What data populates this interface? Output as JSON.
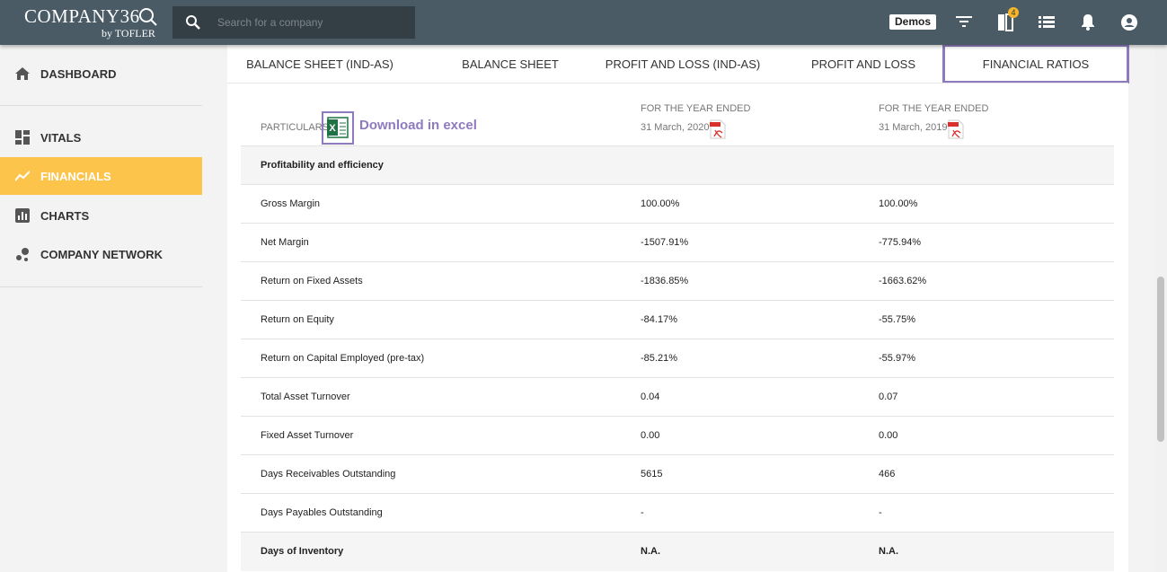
{
  "topbar": {
    "logo": "COMPANY36",
    "logo_sub": "by TOFLER",
    "search_placeholder": "Search for a company",
    "demos": "Demos",
    "badge": "4"
  },
  "sidebar": {
    "items": [
      "DASHBOARD",
      "VITALS",
      "FINANCIALS",
      "CHARTS",
      "COMPANY NETWORK"
    ]
  },
  "tabs": [
    "BALANCE SHEET (IND-AS)",
    "BALANCE SHEET",
    "PROFIT AND LOSS (IND-AS)",
    "PROFIT AND LOSS",
    "FINANCIAL RATIOS"
  ],
  "table": {
    "particulars": "PARTICULARS",
    "download": "Download in excel",
    "columns": [
      {
        "heading": "FOR THE YEAR ENDED",
        "date": "31 March, 2020"
      },
      {
        "heading": "FOR THE YEAR ENDED",
        "date": "31 March, 2019"
      }
    ],
    "section": "Profitability and efficiency",
    "rows": [
      [
        "Gross Margin",
        "100.00%",
        "100.00%"
      ],
      [
        "Net Margin",
        "-1507.91%",
        "-775.94%"
      ],
      [
        "Return on Fixed Assets",
        "-1836.85%",
        "-1663.62%"
      ],
      [
        "Return on Equity",
        "-84.17%",
        "-55.75%"
      ],
      [
        "Return on Capital Employed (pre-tax)",
        "-85.21%",
        "-55.97%"
      ],
      [
        "Total Asset Turnover",
        "0.04",
        "0.07"
      ],
      [
        "Fixed Asset Turnover",
        "0.00",
        "0.00"
      ],
      [
        "Days Receivables Outstanding",
        "5615",
        "466"
      ],
      [
        "Days Payables Outstanding",
        "-",
        "-"
      ],
      [
        "Days of Inventory",
        "N.A.",
        "N.A."
      ]
    ]
  }
}
